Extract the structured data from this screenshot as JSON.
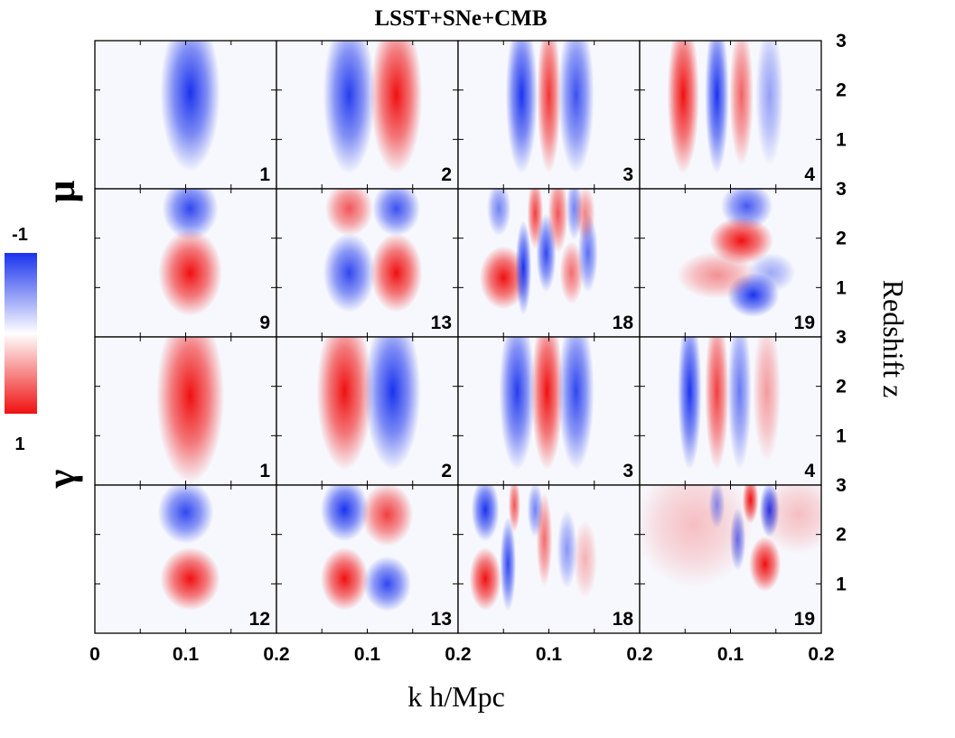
{
  "chart_data": {
    "type": "heatmap",
    "title": "LSST+SNe+CMB",
    "xlabel": "k h/Mpc",
    "ylabel": "Redshift z",
    "row_group_labels": [
      "μ",
      "γ"
    ],
    "x_range": [
      0,
      0.2
    ],
    "y_range": [
      0,
      3
    ],
    "x_ticks": [
      "0",
      "0.1",
      "0.2",
      "0.1",
      "0.2",
      "0.1",
      "0.2",
      "0.1",
      "0.2"
    ],
    "y_ticks": [
      "3",
      "2",
      "1"
    ],
    "colorbar": {
      "top_label": "-1",
      "bottom_label": "1",
      "min_color": "#1a33ee",
      "mid_color": "#ffffff",
      "max_color": "#f01010"
    },
    "panels": [
      {
        "row": 0,
        "col": 0,
        "label": "1",
        "blobs": [
          {
            "k": 0.105,
            "z": 1.95,
            "sk": 0.015,
            "sz": 1.0,
            "a": -1.0
          }
        ]
      },
      {
        "row": 0,
        "col": 1,
        "label": "2",
        "blobs": [
          {
            "k": 0.08,
            "z": 1.9,
            "sk": 0.013,
            "sz": 1.0,
            "a": -0.95
          },
          {
            "k": 0.132,
            "z": 1.9,
            "sk": 0.013,
            "sz": 1.0,
            "a": 1.0
          }
        ]
      },
      {
        "row": 0,
        "col": 2,
        "label": "3",
        "blobs": [
          {
            "k": 0.07,
            "z": 1.9,
            "sk": 0.008,
            "sz": 1.0,
            "a": -1.0
          },
          {
            "k": 0.1,
            "z": 1.9,
            "sk": 0.006,
            "sz": 1.0,
            "a": 0.85
          },
          {
            "k": 0.13,
            "z": 1.9,
            "sk": 0.009,
            "sz": 1.0,
            "a": -0.85
          }
        ]
      },
      {
        "row": 0,
        "col": 3,
        "label": "4",
        "blobs": [
          {
            "k": 0.048,
            "z": 1.9,
            "sk": 0.008,
            "sz": 1.0,
            "a": 1.0
          },
          {
            "k": 0.085,
            "z": 1.9,
            "sk": 0.006,
            "sz": 1.0,
            "a": -1.0
          },
          {
            "k": 0.112,
            "z": 1.9,
            "sk": 0.006,
            "sz": 0.9,
            "a": 0.65
          },
          {
            "k": 0.143,
            "z": 1.9,
            "sk": 0.007,
            "sz": 0.9,
            "a": -0.45
          }
        ]
      },
      {
        "row": 1,
        "col": 0,
        "label": "9",
        "blobs": [
          {
            "k": 0.105,
            "z": 2.6,
            "sk": 0.014,
            "sz": 0.4,
            "a": -0.9
          },
          {
            "k": 0.105,
            "z": 1.3,
            "sk": 0.016,
            "sz": 0.55,
            "a": 1.0
          }
        ]
      },
      {
        "row": 1,
        "col": 1,
        "label": "13",
        "blobs": [
          {
            "k": 0.08,
            "z": 2.6,
            "sk": 0.012,
            "sz": 0.35,
            "a": 0.7
          },
          {
            "k": 0.132,
            "z": 2.6,
            "sk": 0.012,
            "sz": 0.35,
            "a": -0.85
          },
          {
            "k": 0.08,
            "z": 1.3,
            "sk": 0.013,
            "sz": 0.5,
            "a": -0.9
          },
          {
            "k": 0.132,
            "z": 1.3,
            "sk": 0.013,
            "sz": 0.5,
            "a": 1.0
          }
        ]
      },
      {
        "row": 1,
        "col": 2,
        "label": "18",
        "blobs": [
          {
            "k": 0.05,
            "z": 1.2,
            "sk": 0.012,
            "sz": 0.4,
            "a": 1.0
          },
          {
            "k": 0.072,
            "z": 1.4,
            "sk": 0.004,
            "sz": 0.6,
            "a": -1.0
          },
          {
            "k": 0.085,
            "z": 2.5,
            "sk": 0.004,
            "sz": 0.45,
            "a": 0.8
          },
          {
            "k": 0.097,
            "z": 1.7,
            "sk": 0.005,
            "sz": 0.5,
            "a": -0.9
          },
          {
            "k": 0.11,
            "z": 2.5,
            "sk": 0.005,
            "sz": 0.5,
            "a": 0.7
          },
          {
            "k": 0.125,
            "z": 1.3,
            "sk": 0.006,
            "sz": 0.4,
            "a": 0.6
          },
          {
            "k": 0.143,
            "z": 1.7,
            "sk": 0.005,
            "sz": 0.5,
            "a": -0.7
          },
          {
            "k": 0.128,
            "z": 2.6,
            "sk": 0.004,
            "sz": 0.4,
            "a": -0.6
          },
          {
            "k": 0.045,
            "z": 2.6,
            "sk": 0.006,
            "sz": 0.35,
            "a": -0.6
          },
          {
            "k": 0.14,
            "z": 2.5,
            "sk": 0.005,
            "sz": 0.35,
            "a": 0.5
          }
        ]
      },
      {
        "row": 1,
        "col": 3,
        "label": "19",
        "blobs": [
          {
            "k": 0.118,
            "z": 2.65,
            "sk": 0.013,
            "sz": 0.3,
            "a": -0.8
          },
          {
            "k": 0.112,
            "z": 1.95,
            "sk": 0.016,
            "sz": 0.3,
            "a": 1.0
          },
          {
            "k": 0.125,
            "z": 0.85,
            "sk": 0.013,
            "sz": 0.28,
            "a": -1.0
          },
          {
            "k": 0.085,
            "z": 1.25,
            "sk": 0.02,
            "sz": 0.3,
            "a": 0.45
          },
          {
            "k": 0.145,
            "z": 1.3,
            "sk": 0.012,
            "sz": 0.25,
            "a": -0.4
          }
        ]
      },
      {
        "row": 2,
        "col": 0,
        "label": "1",
        "blobs": [
          {
            "k": 0.105,
            "z": 1.8,
            "sk": 0.017,
            "sz": 1.1,
            "a": 1.0
          }
        ]
      },
      {
        "row": 2,
        "col": 1,
        "label": "2",
        "blobs": [
          {
            "k": 0.075,
            "z": 1.9,
            "sk": 0.014,
            "sz": 1.0,
            "a": 1.0
          },
          {
            "k": 0.128,
            "z": 1.9,
            "sk": 0.014,
            "sz": 1.0,
            "a": -1.0
          }
        ]
      },
      {
        "row": 2,
        "col": 2,
        "label": "3",
        "blobs": [
          {
            "k": 0.065,
            "z": 1.9,
            "sk": 0.009,
            "sz": 1.0,
            "a": -0.95
          },
          {
            "k": 0.098,
            "z": 1.9,
            "sk": 0.008,
            "sz": 1.0,
            "a": 1.0
          },
          {
            "k": 0.13,
            "z": 1.9,
            "sk": 0.009,
            "sz": 1.0,
            "a": -0.9
          }
        ]
      },
      {
        "row": 2,
        "col": 3,
        "label": "4",
        "blobs": [
          {
            "k": 0.055,
            "z": 1.9,
            "sk": 0.006,
            "sz": 1.0,
            "a": -1.0
          },
          {
            "k": 0.085,
            "z": 1.9,
            "sk": 0.006,
            "sz": 1.0,
            "a": 0.8
          },
          {
            "k": 0.11,
            "z": 1.9,
            "sk": 0.006,
            "sz": 1.0,
            "a": -0.65
          },
          {
            "k": 0.14,
            "z": 1.9,
            "sk": 0.007,
            "sz": 0.9,
            "a": 0.4
          }
        ]
      },
      {
        "row": 3,
        "col": 0,
        "label": "12",
        "blobs": [
          {
            "k": 0.1,
            "z": 2.45,
            "sk": 0.014,
            "sz": 0.4,
            "a": -0.9
          },
          {
            "k": 0.105,
            "z": 1.1,
            "sk": 0.015,
            "sz": 0.4,
            "a": 1.0
          }
        ]
      },
      {
        "row": 3,
        "col": 1,
        "label": "13",
        "blobs": [
          {
            "k": 0.075,
            "z": 2.5,
            "sk": 0.012,
            "sz": 0.4,
            "a": -1.0
          },
          {
            "k": 0.122,
            "z": 2.4,
            "sk": 0.013,
            "sz": 0.4,
            "a": 0.8
          },
          {
            "k": 0.075,
            "z": 1.1,
            "sk": 0.012,
            "sz": 0.4,
            "a": 1.0
          },
          {
            "k": 0.122,
            "z": 1.0,
            "sk": 0.012,
            "sz": 0.35,
            "a": -0.9
          }
        ]
      },
      {
        "row": 3,
        "col": 2,
        "label": "18",
        "blobs": [
          {
            "k": 0.03,
            "z": 2.5,
            "sk": 0.007,
            "sz": 0.4,
            "a": -1.0
          },
          {
            "k": 0.03,
            "z": 1.1,
            "sk": 0.008,
            "sz": 0.4,
            "a": 1.0
          },
          {
            "k": 0.055,
            "z": 1.4,
            "sk": 0.004,
            "sz": 0.6,
            "a": -0.9
          },
          {
            "k": 0.062,
            "z": 2.6,
            "sk": 0.003,
            "sz": 0.35,
            "a": 0.7
          },
          {
            "k": 0.085,
            "z": 2.5,
            "sk": 0.004,
            "sz": 0.35,
            "a": -0.6
          },
          {
            "k": 0.095,
            "z": 1.9,
            "sk": 0.004,
            "sz": 0.6,
            "a": 0.6
          },
          {
            "k": 0.12,
            "z": 1.7,
            "sk": 0.005,
            "sz": 0.5,
            "a": -0.5
          },
          {
            "k": 0.14,
            "z": 1.5,
            "sk": 0.006,
            "sz": 0.5,
            "a": 0.3
          }
        ]
      },
      {
        "row": 3,
        "col": 3,
        "label": "19",
        "blobs": [
          {
            "k": 0.122,
            "z": 2.7,
            "sk": 0.004,
            "sz": 0.3,
            "a": 1.0
          },
          {
            "k": 0.143,
            "z": 2.5,
            "sk": 0.005,
            "sz": 0.35,
            "a": -1.0
          },
          {
            "k": 0.138,
            "z": 1.4,
            "sk": 0.008,
            "sz": 0.35,
            "a": 1.0
          },
          {
            "k": 0.108,
            "z": 1.9,
            "sk": 0.004,
            "sz": 0.4,
            "a": -0.7
          },
          {
            "k": 0.06,
            "z": 2.2,
            "sk": 0.03,
            "sz": 0.8,
            "a": 0.25
          },
          {
            "k": 0.175,
            "z": 2.4,
            "sk": 0.02,
            "sz": 0.5,
            "a": 0.25
          },
          {
            "k": 0.085,
            "z": 2.6,
            "sk": 0.004,
            "sz": 0.3,
            "a": -0.5
          }
        ]
      }
    ]
  }
}
